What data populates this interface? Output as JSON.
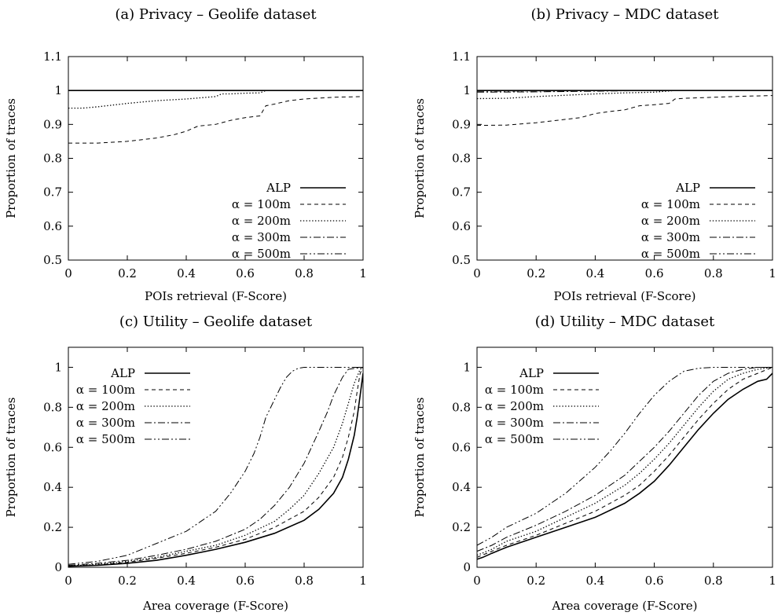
{
  "legend_items": [
    {
      "label": "ALP",
      "dash": "solid"
    },
    {
      "label": "α = 100m",
      "dash": "dashed"
    },
    {
      "label": "α = 200m",
      "dash": "dotted"
    },
    {
      "label": "α = 300m",
      "dash": "dashdot"
    },
    {
      "label": "α = 500m",
      "dash": "dashdotdot"
    }
  ],
  "chart_data": [
    {
      "type": "line",
      "title": "(a) Privacy – Geolife dataset",
      "xlabel": "POIs retrieval (F-Score)",
      "ylabel": "Proportion of traces",
      "xlim": [
        0,
        1
      ],
      "ylim": [
        0.5,
        1.1
      ],
      "xticks": [
        "0",
        "0.2",
        "0.4",
        "0.6",
        "0.8",
        "1"
      ],
      "yticks": [
        "0.5",
        "0.6",
        "0.7",
        "0.8",
        "0.9",
        "1",
        "1.1"
      ],
      "legend": "bottom-right",
      "series": [
        {
          "name": "ALP",
          "x": [
            0,
            1
          ],
          "y": [
            1.0,
            1.0
          ]
        },
        {
          "name": "α = 100m",
          "x": [
            0,
            0.1,
            0.2,
            0.3,
            0.36,
            0.4,
            0.44,
            0.5,
            0.55,
            0.6,
            0.65,
            0.67,
            0.7,
            0.75,
            0.8,
            0.9,
            1.0
          ],
          "y": [
            0.845,
            0.845,
            0.85,
            0.86,
            0.87,
            0.88,
            0.895,
            0.9,
            0.912,
            0.92,
            0.925,
            0.955,
            0.96,
            0.97,
            0.975,
            0.98,
            0.982
          ]
        },
        {
          "name": "α = 200m",
          "x": [
            0,
            0.05,
            0.1,
            0.2,
            0.3,
            0.4,
            0.5,
            0.52,
            0.55,
            0.6,
            0.65,
            0.67,
            0.7,
            1.0
          ],
          "y": [
            0.948,
            0.948,
            0.952,
            0.962,
            0.97,
            0.975,
            0.982,
            0.99,
            0.99,
            0.992,
            0.993,
            1.0,
            1.0,
            1.0
          ]
        },
        {
          "name": "α = 300m",
          "x": [
            0,
            1
          ],
          "y": [
            1.0,
            1.0
          ]
        },
        {
          "name": "α = 500m",
          "x": [
            0,
            1
          ],
          "y": [
            1.0,
            1.0
          ]
        }
      ]
    },
    {
      "type": "line",
      "title": "(b) Privacy – MDC dataset",
      "xlabel": "POIs retrieval (F-Score)",
      "ylabel": "Proportion of traces",
      "xlim": [
        0,
        1
      ],
      "ylim": [
        0.5,
        1.1
      ],
      "xticks": [
        "0",
        "0.2",
        "0.4",
        "0.6",
        "0.8",
        "1"
      ],
      "yticks": [
        "0.5",
        "0.6",
        "0.7",
        "0.8",
        "0.9",
        "1",
        "1.1"
      ],
      "legend": "bottom-right",
      "series": [
        {
          "name": "ALP",
          "x": [
            0,
            1
          ],
          "y": [
            1.0,
            1.0
          ]
        },
        {
          "name": "α = 100m",
          "x": [
            0,
            0.1,
            0.2,
            0.3,
            0.35,
            0.4,
            0.45,
            0.5,
            0.55,
            0.6,
            0.65,
            0.67,
            0.7,
            0.8,
            0.9,
            1.0
          ],
          "y": [
            0.897,
            0.898,
            0.905,
            0.915,
            0.92,
            0.932,
            0.938,
            0.943,
            0.955,
            0.958,
            0.962,
            0.975,
            0.977,
            0.98,
            0.983,
            0.985
          ]
        },
        {
          "name": "α = 200m",
          "x": [
            0,
            0.1,
            0.2,
            0.3,
            0.4,
            0.5,
            0.6,
            0.67,
            1.0
          ],
          "y": [
            0.976,
            0.977,
            0.982,
            0.986,
            0.99,
            0.993,
            0.995,
            1.0,
            1.0
          ]
        },
        {
          "name": "α = 300m",
          "x": [
            0,
            0.2,
            0.4,
            0.6,
            1.0
          ],
          "y": [
            0.995,
            0.996,
            0.998,
            1.0,
            1.0
          ]
        },
        {
          "name": "α = 500m",
          "x": [
            0,
            0.3,
            0.6,
            1.0
          ],
          "y": [
            0.998,
            0.999,
            1.0,
            1.0
          ]
        }
      ]
    },
    {
      "type": "line",
      "title": "(c) Utility – Geolife dataset",
      "xlabel": "Area coverage (F-Score)",
      "ylabel": "Proportion of traces",
      "xlim": [
        0,
        1
      ],
      "ylim": [
        0,
        1.1
      ],
      "xticks": [
        "0",
        "0.2",
        "0.4",
        "0.6",
        "0.8",
        "1"
      ],
      "yticks": [
        "0",
        "0.2",
        "0.4",
        "0.6",
        "0.8",
        "1"
      ],
      "legend": "top-left",
      "series": [
        {
          "name": "ALP",
          "x": [
            0,
            0.1,
            0.2,
            0.3,
            0.4,
            0.5,
            0.6,
            0.7,
            0.8,
            0.85,
            0.9,
            0.93,
            0.95,
            0.97,
            0.98,
            0.99,
            1.0
          ],
          "y": [
            0.005,
            0.01,
            0.02,
            0.035,
            0.06,
            0.09,
            0.125,
            0.17,
            0.235,
            0.29,
            0.37,
            0.45,
            0.54,
            0.66,
            0.75,
            0.86,
            0.97
          ]
        },
        {
          "name": "α = 100m",
          "x": [
            0,
            0.1,
            0.2,
            0.3,
            0.4,
            0.5,
            0.6,
            0.7,
            0.8,
            0.85,
            0.9,
            0.93,
            0.95,
            0.97,
            0.98,
            0.99,
            1.0
          ],
          "y": [
            0.005,
            0.012,
            0.025,
            0.045,
            0.07,
            0.1,
            0.14,
            0.2,
            0.28,
            0.35,
            0.45,
            0.55,
            0.65,
            0.78,
            0.88,
            0.97,
            1.0
          ]
        },
        {
          "name": "α = 200m",
          "x": [
            0,
            0.1,
            0.2,
            0.3,
            0.4,
            0.5,
            0.6,
            0.7,
            0.75,
            0.8,
            0.85,
            0.9,
            0.93,
            0.95,
            0.97,
            0.99,
            1.0
          ],
          "y": [
            0.007,
            0.015,
            0.03,
            0.05,
            0.08,
            0.11,
            0.16,
            0.23,
            0.29,
            0.36,
            0.47,
            0.6,
            0.72,
            0.82,
            0.92,
            0.99,
            1.0
          ]
        },
        {
          "name": "α = 300m",
          "x": [
            0,
            0.1,
            0.2,
            0.3,
            0.4,
            0.5,
            0.6,
            0.65,
            0.7,
            0.75,
            0.8,
            0.85,
            0.88,
            0.9,
            0.93,
            0.95,
            1.0
          ],
          "y": [
            0.01,
            0.02,
            0.035,
            0.06,
            0.09,
            0.13,
            0.19,
            0.24,
            0.31,
            0.4,
            0.52,
            0.68,
            0.78,
            0.86,
            0.95,
            0.99,
            1.0
          ]
        },
        {
          "name": "α = 500m",
          "x": [
            0,
            0.1,
            0.2,
            0.3,
            0.4,
            0.5,
            0.55,
            0.6,
            0.63,
            0.65,
            0.67,
            0.7,
            0.72,
            0.74,
            0.76,
            0.78,
            0.8,
            0.85,
            1.0
          ],
          "y": [
            0.015,
            0.03,
            0.06,
            0.12,
            0.18,
            0.28,
            0.37,
            0.48,
            0.57,
            0.65,
            0.75,
            0.84,
            0.9,
            0.95,
            0.98,
            0.995,
            1.0,
            1.0,
            1.0
          ]
        }
      ]
    },
    {
      "type": "line",
      "title": "(d) Utility – MDC dataset",
      "xlabel": "Area coverage (F-Score)",
      "ylabel": "Proportion of traces",
      "xlim": [
        0,
        1
      ],
      "ylim": [
        0,
        1.1
      ],
      "xticks": [
        "0",
        "0.2",
        "0.4",
        "0.6",
        "0.8",
        "1"
      ],
      "yticks": [
        "0",
        "0.2",
        "0.4",
        "0.6",
        "0.8",
        "1"
      ],
      "legend": "top-left",
      "series": [
        {
          "name": "ALP",
          "x": [
            0,
            0.02,
            0.05,
            0.1,
            0.2,
            0.3,
            0.4,
            0.5,
            0.55,
            0.6,
            0.65,
            0.7,
            0.75,
            0.8,
            0.85,
            0.9,
            0.95,
            0.98,
            1.0
          ],
          "y": [
            0.04,
            0.05,
            0.07,
            0.1,
            0.15,
            0.2,
            0.25,
            0.32,
            0.37,
            0.43,
            0.51,
            0.6,
            0.69,
            0.77,
            0.84,
            0.89,
            0.93,
            0.94,
            0.97
          ]
        },
        {
          "name": "α = 100m",
          "x": [
            0,
            0.05,
            0.1,
            0.2,
            0.3,
            0.4,
            0.5,
            0.55,
            0.6,
            0.65,
            0.7,
            0.75,
            0.8,
            0.85,
            0.9,
            0.95,
            1.0
          ],
          "y": [
            0.05,
            0.08,
            0.11,
            0.16,
            0.22,
            0.28,
            0.36,
            0.41,
            0.48,
            0.56,
            0.65,
            0.74,
            0.82,
            0.89,
            0.94,
            0.97,
            1.0
          ]
        },
        {
          "name": "α = 200m",
          "x": [
            0,
            0.05,
            0.1,
            0.2,
            0.3,
            0.4,
            0.5,
            0.55,
            0.6,
            0.65,
            0.7,
            0.75,
            0.8,
            0.85,
            0.9,
            0.95,
            1.0
          ],
          "y": [
            0.06,
            0.09,
            0.13,
            0.18,
            0.25,
            0.32,
            0.41,
            0.47,
            0.54,
            0.62,
            0.71,
            0.8,
            0.88,
            0.94,
            0.97,
            0.99,
            1.0
          ]
        },
        {
          "name": "α = 300m",
          "x": [
            0,
            0.05,
            0.1,
            0.2,
            0.3,
            0.4,
            0.5,
            0.55,
            0.6,
            0.65,
            0.7,
            0.75,
            0.8,
            0.85,
            0.9,
            0.95,
            1.0
          ],
          "y": [
            0.08,
            0.11,
            0.15,
            0.21,
            0.28,
            0.36,
            0.46,
            0.53,
            0.6,
            0.68,
            0.77,
            0.86,
            0.93,
            0.97,
            0.99,
            1.0,
            1.0
          ]
        },
        {
          "name": "α = 500m",
          "x": [
            0,
            0.05,
            0.1,
            0.2,
            0.3,
            0.4,
            0.45,
            0.5,
            0.55,
            0.6,
            0.65,
            0.7,
            0.75,
            0.8,
            0.85,
            1.0
          ],
          "y": [
            0.11,
            0.15,
            0.2,
            0.27,
            0.37,
            0.5,
            0.58,
            0.67,
            0.77,
            0.86,
            0.93,
            0.98,
            0.995,
            1.0,
            1.0,
            1.0
          ]
        }
      ]
    }
  ]
}
